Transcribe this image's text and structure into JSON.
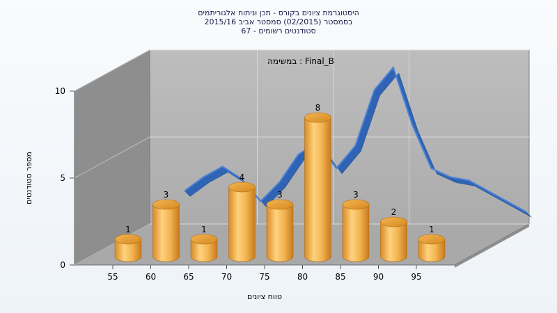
{
  "title_lines": [
    "היסטוגרמת ציונים בקורס - תכן וניתוח אלגוריתמים",
    "בסמסטר  (02/2015)  סמסטר אביב 2015/16",
    "סטודנטים רשומים - 67"
  ],
  "chart_data": {
    "type": "bar",
    "subtitle": "במשימה : Final_B",
    "xlabel": "טווח ציונים",
    "ylabel": "מספר סטודנטים",
    "x_ticks": [
      "55",
      "60",
      "65",
      "70",
      "75",
      "80",
      "85",
      "90",
      "95"
    ],
    "y_ticks": [
      "0",
      "5",
      "10"
    ],
    "ylim": [
      0,
      10
    ],
    "grid": true,
    "bars": [
      {
        "x": 55,
        "value": 1
      },
      {
        "x": 60,
        "value": 3
      },
      {
        "x": 65,
        "value": 1
      },
      {
        "x": 70,
        "value": 4
      },
      {
        "x": 75,
        "value": 3
      },
      {
        "x": 80,
        "value": 8
      },
      {
        "x": 85,
        "value": 3
      },
      {
        "x": 90,
        "value": 2
      },
      {
        "x": 95,
        "value": 1
      }
    ],
    "curve": {
      "x": [
        60,
        62.5,
        65,
        67.5,
        70,
        72.5,
        75,
        77.5,
        80,
        82.5,
        85,
        87.5,
        90,
        92.5,
        95,
        97.5,
        100,
        102.5,
        105
      ],
      "y": [
        3.2,
        4.0,
        4.6,
        3.9,
        2.6,
        3.7,
        5.3,
        6.0,
        4.5,
        5.8,
        9.0,
        10.3,
        7.0,
        4.5,
        4.0,
        3.8,
        3.2,
        2.6,
        2.0
      ]
    },
    "colors": {
      "bar_front": "#f2b24e",
      "bar_top": "#e69a2c",
      "curve_front": "#2a5fb4",
      "curve_top": "#4a82d8",
      "back_wall": "#b6b6b6",
      "left_wall": "#8e8e8e",
      "floor": "#a7a7a7",
      "grid": "#d9d9d9"
    }
  }
}
